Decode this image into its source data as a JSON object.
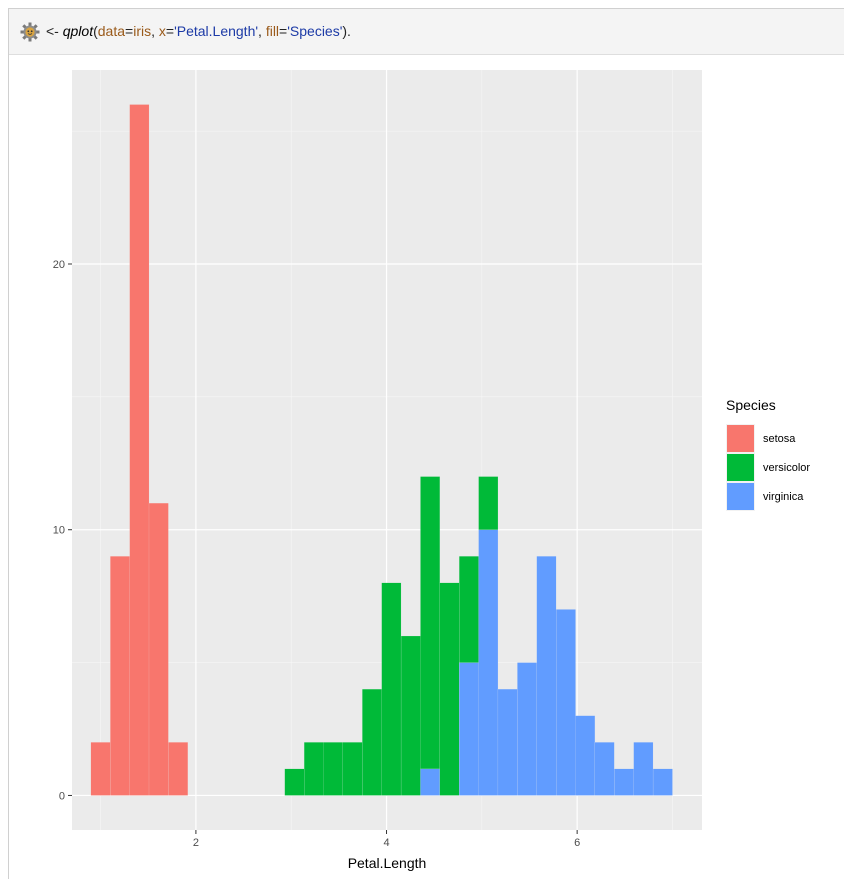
{
  "code_bar": {
    "prefix": "<- ",
    "fn": "qplot",
    "open": "(",
    "arg1_name": "data",
    "eq1": "=",
    "arg1_value": "iris",
    "sep1": ", ",
    "arg2_name": "x",
    "eq2": "=",
    "arg2_value": "'Petal.Length'",
    "sep2": ", ",
    "arg3_name": "fill",
    "eq3": "=",
    "arg3_value": "'Species'",
    "close": ").",
    "icon": "gear-robot-icon"
  },
  "chart_data": {
    "type": "bar",
    "subtype": "stacked-histogram",
    "xlabel": "Petal.Length",
    "ylabel": "",
    "xlim": [
      0.7,
      7.31
    ],
    "ylim": [
      -1.3,
      27.3
    ],
    "xticks": [
      2,
      4,
      6
    ],
    "yticks": [
      0,
      10,
      20
    ],
    "grid": true,
    "bin_width": 0.2034,
    "bins_start": [
      0.898,
      1.102,
      1.305,
      1.508,
      1.712,
      1.915,
      2.119,
      2.322,
      2.525,
      2.729,
      2.932,
      3.136,
      3.339,
      3.542,
      3.746,
      3.949,
      4.153,
      4.356,
      4.559,
      4.763,
      4.966,
      5.169,
      5.373,
      5.576,
      5.78,
      5.983,
      6.186,
      6.39,
      6.593,
      6.797
    ],
    "legend_title": "Species",
    "legend_position": "right",
    "series": [
      {
        "name": "setosa",
        "color": "#F8766D",
        "values": [
          2,
          9,
          26,
          11,
          2,
          0,
          0,
          0,
          0,
          0,
          0,
          0,
          0,
          0,
          0,
          0,
          0,
          0,
          0,
          0,
          0,
          0,
          0,
          0,
          0,
          0,
          0,
          0,
          0,
          0
        ]
      },
      {
        "name": "versicolor",
        "color": "#00BA38",
        "values": [
          0,
          0,
          0,
          0,
          0,
          0,
          0,
          0,
          0,
          0,
          1,
          2,
          2,
          2,
          4,
          8,
          6,
          11,
          8,
          4,
          2,
          0,
          0,
          0,
          0,
          0,
          0,
          0,
          0,
          0
        ]
      },
      {
        "name": "virginica",
        "color": "#619CFF",
        "values": [
          0,
          0,
          0,
          0,
          0,
          0,
          0,
          0,
          0,
          0,
          0,
          0,
          0,
          0,
          0,
          0,
          0,
          1,
          0,
          5,
          10,
          4,
          5,
          9,
          7,
          3,
          2,
          1,
          2,
          1
        ]
      }
    ]
  }
}
